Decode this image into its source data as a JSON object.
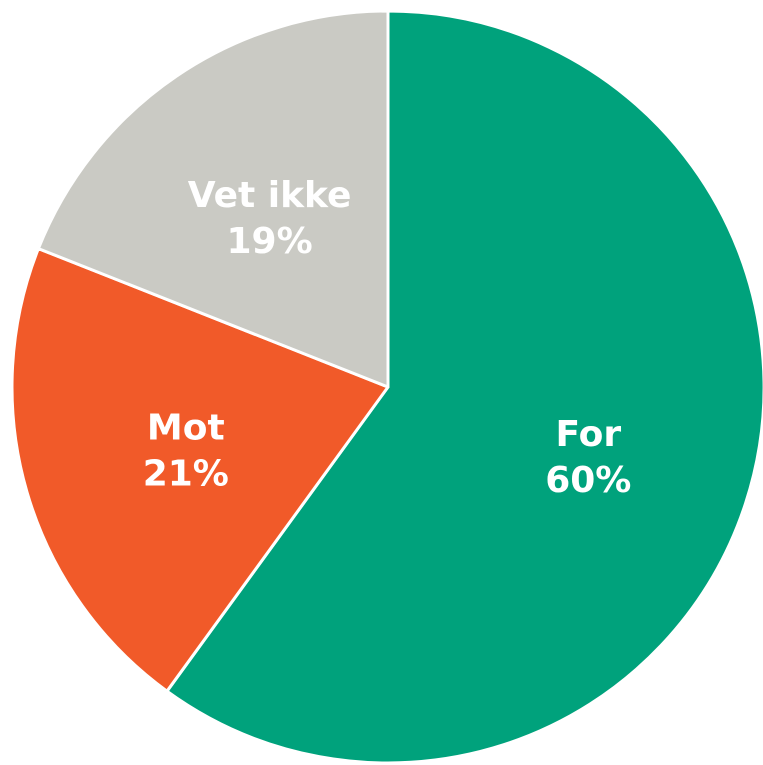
{
  "chart_data": {
    "type": "pie",
    "title": "",
    "slices": [
      {
        "label": "For",
        "value": 60,
        "value_label": "60%",
        "color": "#00A27C"
      },
      {
        "label": "Mot",
        "value": 21,
        "value_label": "21%",
        "color": "#F15A29"
      },
      {
        "label": "Vet ikke",
        "value": 19,
        "value_label": "19%",
        "color": "#CACAC4"
      }
    ],
    "start": "12 o'clock",
    "direction": "clockwise",
    "legend": "none"
  }
}
